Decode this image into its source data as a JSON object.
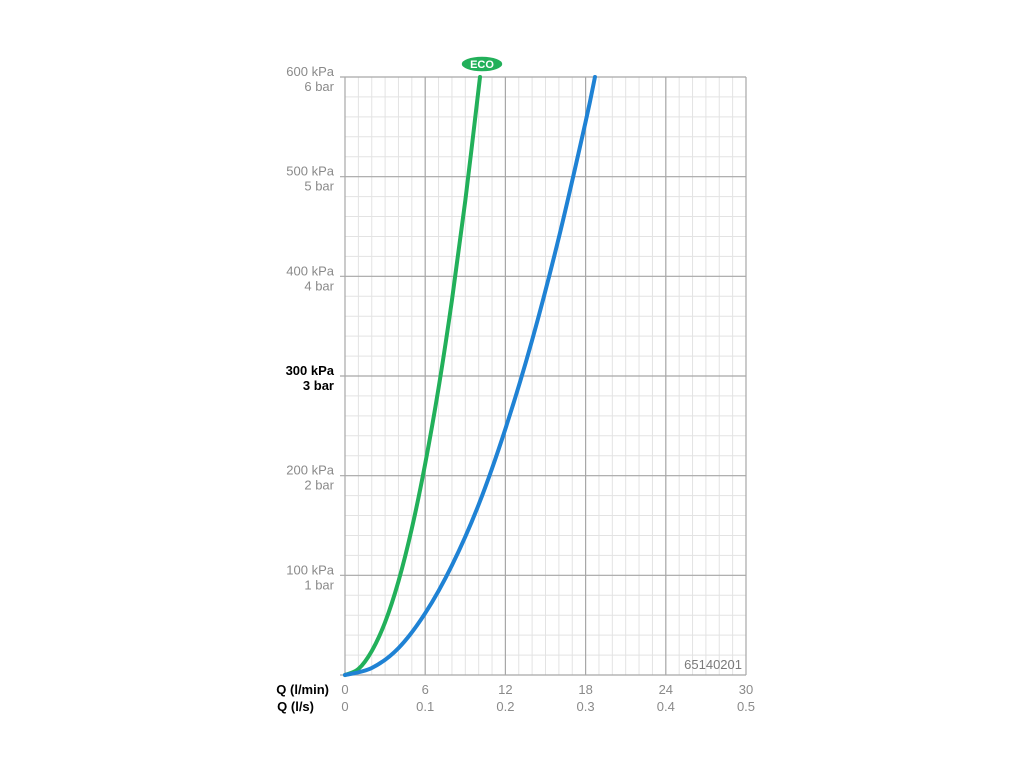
{
  "chart_data": {
    "type": "line",
    "x_label_primary": "Q (l/min)",
    "x_label_secondary": "Q (l/s)",
    "x_ticks_primary": [
      "0",
      "6",
      "12",
      "18",
      "24",
      "30"
    ],
    "x_ticks_secondary": [
      "0",
      "0.1",
      "0.2",
      "0.3",
      "0.4",
      "0.5"
    ],
    "x_range": [
      0,
      30
    ],
    "y_range": [
      0,
      600
    ],
    "y_ticks": [
      {
        "value": 600,
        "kpa": "600 kPa",
        "bar": "6 bar",
        "bold": false
      },
      {
        "value": 500,
        "kpa": "500 kPa",
        "bar": "5 bar",
        "bold": false
      },
      {
        "value": 400,
        "kpa": "400 kPa",
        "bar": "4 bar",
        "bold": false
      },
      {
        "value": 300,
        "kpa": "300 kPa",
        "bar": "3 bar",
        "bold": true
      },
      {
        "value": 200,
        "kpa": "200 kPa",
        "bar": "2 bar",
        "bold": false
      },
      {
        "value": 100,
        "kpa": "100 kPa",
        "bar": "1 bar",
        "bold": false
      }
    ],
    "grid": true,
    "series": [
      {
        "name": "ECO",
        "color": "#22b05a",
        "x": [
          0,
          1,
          2,
          3,
          4,
          5,
          6,
          7,
          8,
          9,
          10.1
        ],
        "y": [
          0,
          6,
          24,
          53,
          94,
          147,
          212,
          288,
          376,
          476,
          600
        ]
      },
      {
        "color": "#1f82d4",
        "x": [
          0,
          2,
          4,
          6,
          8,
          10,
          12,
          14,
          16,
          18,
          18.7
        ],
        "y": [
          0,
          7,
          27,
          62,
          110,
          171,
          247,
          336,
          439,
          555,
          600
        ]
      }
    ],
    "annotation": "65140201"
  }
}
